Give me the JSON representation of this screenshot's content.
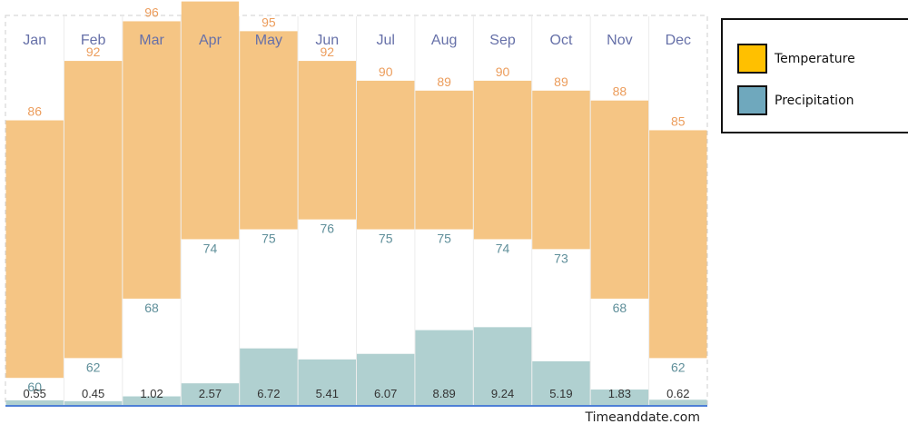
{
  "chart_data": {
    "type": "bar",
    "categories": [
      "Jan",
      "Feb",
      "Mar",
      "Apr",
      "May",
      "Jun",
      "Jul",
      "Aug",
      "Sep",
      "Oct",
      "Nov",
      "Dec"
    ],
    "series": [
      {
        "name": "Temperature",
        "high": [
          86,
          92,
          96,
          98,
          95,
          92,
          90,
          89,
          90,
          89,
          88,
          85
        ],
        "low": [
          60,
          62,
          68,
          74,
          75,
          76,
          75,
          75,
          74,
          73,
          68,
          62
        ]
      },
      {
        "name": "Precipitation",
        "values": [
          0.55,
          0.45,
          1.02,
          2.57,
          6.72,
          5.41,
          6.07,
          8.89,
          9.24,
          5.19,
          1.83,
          0.62
        ]
      }
    ],
    "title": "",
    "xlabel": "",
    "ylabel": "",
    "temperature_range": [
      30,
      105
    ],
    "precipitation_range": [
      0,
      40
    ],
    "grid": true,
    "legend": {
      "placement": "right",
      "items": [
        {
          "label": "Temperature",
          "color": "#ffc000"
        },
        {
          "label": "Precipitation",
          "color": "#6fa8bd"
        }
      ]
    },
    "source": "Timeanddate.com"
  },
  "colors": {
    "temperature_bar": "#f5c584",
    "precipitation_bar": "#b0d0d0",
    "high_label": "#ec9d5c",
    "low_label": "#5f8f9a",
    "month_label": "#6670a8"
  }
}
